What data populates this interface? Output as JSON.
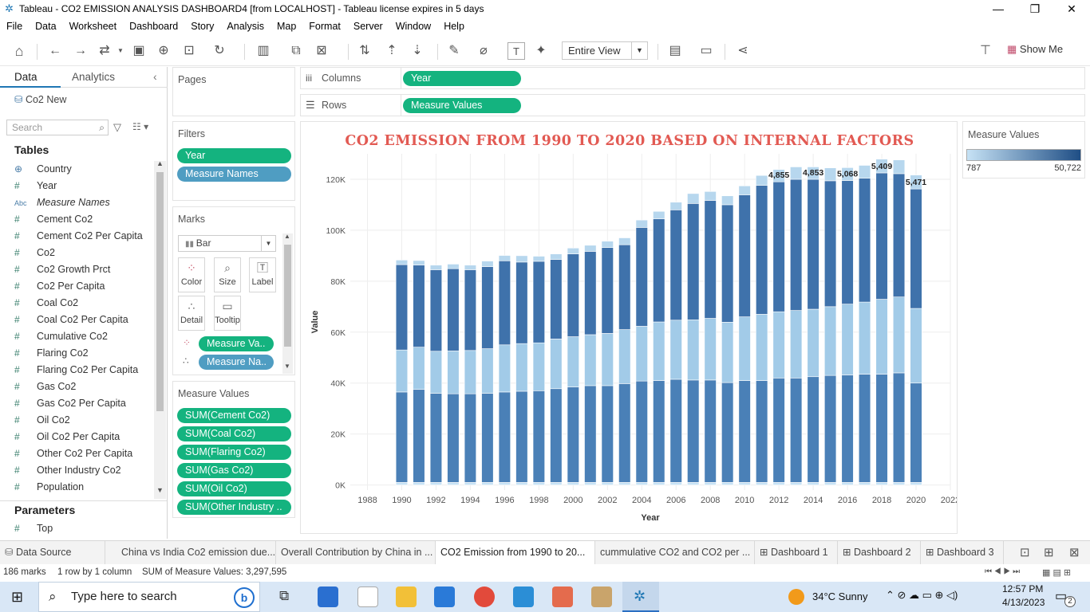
{
  "window": {
    "title": "Tableau - CO2 EMISSION ANALYSIS DASHBOARD4 [from LOCALHOST] - Tableau license expires in 5 days"
  },
  "menu": [
    "File",
    "Data",
    "Worksheet",
    "Dashboard",
    "Story",
    "Analysis",
    "Map",
    "Format",
    "Server",
    "Window",
    "Help"
  ],
  "toolbar": {
    "fit_value": "Entire View",
    "show_me": "Show Me"
  },
  "data_pane": {
    "tab_data": "Data",
    "tab_analytics": "Analytics",
    "datasource": "Co2 New",
    "search_placeholder": "Search",
    "tables_header": "Tables",
    "fields": [
      {
        "icon": "globe",
        "name": "Country"
      },
      {
        "icon": "#",
        "name": "Year"
      },
      {
        "icon": "Abc",
        "name": "Measure Names"
      },
      {
        "icon": "#",
        "name": "Cement Co2"
      },
      {
        "icon": "#",
        "name": "Cement Co2 Per Capita"
      },
      {
        "icon": "#",
        "name": "Co2"
      },
      {
        "icon": "#",
        "name": "Co2 Growth Prct"
      },
      {
        "icon": "#",
        "name": "Co2 Per Capita"
      },
      {
        "icon": "#",
        "name": "Coal Co2"
      },
      {
        "icon": "#",
        "name": "Coal Co2 Per Capita"
      },
      {
        "icon": "#",
        "name": "Cumulative Co2"
      },
      {
        "icon": "#",
        "name": "Flaring Co2"
      },
      {
        "icon": "#",
        "name": "Flaring Co2 Per Capita"
      },
      {
        "icon": "#",
        "name": "Gas Co2"
      },
      {
        "icon": "#",
        "name": "Gas Co2 Per Capita"
      },
      {
        "icon": "#",
        "name": "Oil Co2"
      },
      {
        "icon": "#",
        "name": "Oil Co2 Per Capita"
      },
      {
        "icon": "#",
        "name": "Other Co2 Per Capita"
      },
      {
        "icon": "#",
        "name": "Other Industry Co2"
      },
      {
        "icon": "#",
        "name": "Population"
      }
    ],
    "parameters_header": "Parameters",
    "parameters": [
      {
        "icon": "#",
        "name": "Top"
      }
    ]
  },
  "pages": {
    "label": "Pages"
  },
  "filters": {
    "label": "Filters",
    "pills": [
      "Year",
      "Measure Names"
    ]
  },
  "marks": {
    "label": "Marks",
    "type": "Bar",
    "buttons": [
      {
        "icon": "color-icon",
        "label": "Color"
      },
      {
        "icon": "size-icon",
        "label": "Size"
      },
      {
        "icon": "label-icon",
        "label": "Label"
      },
      {
        "icon": "detail-icon",
        "label": "Detail"
      },
      {
        "icon": "tooltip-icon",
        "label": "Tooltip"
      }
    ],
    "pills": [
      "Measure Va..",
      "Measure Na.."
    ]
  },
  "measure_values_card": {
    "label": "Measure Values",
    "pills": [
      "SUM(Cement Co2)",
      "SUM(Coal Co2)",
      "SUM(Flaring Co2)",
      "SUM(Gas Co2)",
      "SUM(Oil Co2)",
      "SUM(Other Industry .."
    ]
  },
  "shelves": {
    "columns_label": "Columns",
    "columns_pill": "Year",
    "rows_label": "Rows",
    "rows_pill": "Measure Values"
  },
  "legend": {
    "title": "Measure Values",
    "min": "787",
    "max": "50,722",
    "color_low": "#c6e2f5",
    "color_high": "#1f4e85"
  },
  "chart_data": {
    "type": "bar",
    "title": "CO2 EMISSION FROM 1990 TO 2020 BASED ON INTERNAL FACTORS",
    "xlabel": "Year",
    "ylabel": "Value",
    "ylim": [
      -2000,
      130000
    ],
    "xlim": [
      1987,
      2022
    ],
    "y_ticks": [
      0,
      20000,
      40000,
      60000,
      80000,
      100000,
      120000
    ],
    "y_tick_labels": [
      "0K",
      "20K",
      "40K",
      "60K",
      "80K",
      "100K",
      "120K"
    ],
    "x_ticks": [
      1988,
      1990,
      1992,
      1994,
      1996,
      1998,
      2000,
      2002,
      2004,
      2006,
      2008,
      2010,
      2012,
      2014,
      2016,
      2018,
      2020,
      2022
    ],
    "categories": [
      1990,
      1991,
      1992,
      1993,
      1994,
      1995,
      1996,
      1997,
      1998,
      1999,
      2000,
      2001,
      2002,
      2003,
      2004,
      2005,
      2006,
      2007,
      2008,
      2009,
      2010,
      2011,
      2012,
      2013,
      2014,
      2015,
      2016,
      2017,
      2018,
      2019,
      2020
    ],
    "series": [
      {
        "name": "Other Industry Co2",
        "color": "#c6e2f5",
        "values": [
          1000,
          1000,
          1000,
          1000,
          1000,
          1000,
          1000,
          1000,
          1000,
          1000,
          1000,
          1000,
          1000,
          1000,
          1000,
          1000,
          1000,
          1000,
          1000,
          1000,
          1000,
          1000,
          1000,
          1000,
          1000,
          1000,
          1000,
          1000,
          1000,
          1000,
          1000
        ]
      },
      {
        "name": "Coal Co2",
        "color": "#4a80b7",
        "values": [
          35500,
          36500,
          35000,
          34800,
          34800,
          35000,
          35500,
          35800,
          36000,
          36800,
          37500,
          38000,
          38000,
          38800,
          39800,
          40000,
          40500,
          40200,
          40200,
          39200,
          40000,
          40000,
          41000,
          41000,
          41500,
          42000,
          42200,
          42500,
          42500,
          43000,
          39000
        ]
      },
      {
        "name": "Cement Co2",
        "color": "#a2cbe8",
        "values": [
          16500,
          16600,
          16500,
          16800,
          17000,
          17500,
          18500,
          18700,
          18800,
          19500,
          19700,
          20000,
          20500,
          21200,
          21500,
          23000,
          23200,
          23600,
          24200,
          23700,
          25000,
          26000,
          26000,
          26500,
          26500,
          27000,
          27800,
          28300,
          29400,
          29800,
          29300
        ]
      },
      {
        "name": "Oil Co2",
        "color": "#3f72ab",
        "values": [
          33500,
          32200,
          32000,
          32300,
          31700,
          32200,
          33000,
          32000,
          32000,
          31200,
          32500,
          32700,
          33700,
          33300,
          38800,
          40500,
          43300,
          45700,
          46300,
          46100,
          47900,
          50600,
          51000,
          51500,
          51000,
          49400,
          48500,
          48600,
          49600,
          48400,
          46900
        ]
      },
      {
        "name": "Flaring Co2",
        "color": "#b7d7ee",
        "values": [
          1800,
          1800,
          1800,
          1800,
          1800,
          2200,
          2100,
          2500,
          2000,
          2200,
          2300,
          2400,
          2500,
          2700,
          2900,
          2900,
          3000,
          3900,
          3500,
          3500,
          3500,
          3900,
          4855,
          4855,
          4853,
          5068,
          5068,
          5068,
          5409,
          5409,
          5471
        ]
      }
    ],
    "data_labels": [
      {
        "year": 2012,
        "text": "4,855"
      },
      {
        "year": 2014,
        "text": "4,853"
      },
      {
        "year": 2016,
        "text": "5,068"
      },
      {
        "year": 2018,
        "text": "5,409"
      },
      {
        "year": 2020,
        "text": "5,471"
      }
    ]
  },
  "sheet_tabs": [
    {
      "label": "Data Source",
      "icon": "database-icon"
    },
    {
      "label": "China vs India Co2 emission due..."
    },
    {
      "label": "Overall Contribution by China in ..."
    },
    {
      "label": "CO2 Emission from 1990 to 20...",
      "active": true
    },
    {
      "label": "cummulative CO2 and CO2 per ..."
    },
    {
      "label": "Dashboard 1",
      "icon": "dashboard-icon"
    },
    {
      "label": "Dashboard 2",
      "icon": "dashboard-icon"
    },
    {
      "label": "Dashboard 3",
      "icon": "dashboard-icon"
    }
  ],
  "status": {
    "marks": "186 marks",
    "rows": "1 row by 1 column",
    "sum": "SUM of Measure Values: 3,297,595"
  },
  "taskbar": {
    "search_placeholder": "Type here to search",
    "weather": "34°C  Sunny",
    "time": "12:57 PM",
    "date": "4/13/2023",
    "notifications": "2"
  }
}
